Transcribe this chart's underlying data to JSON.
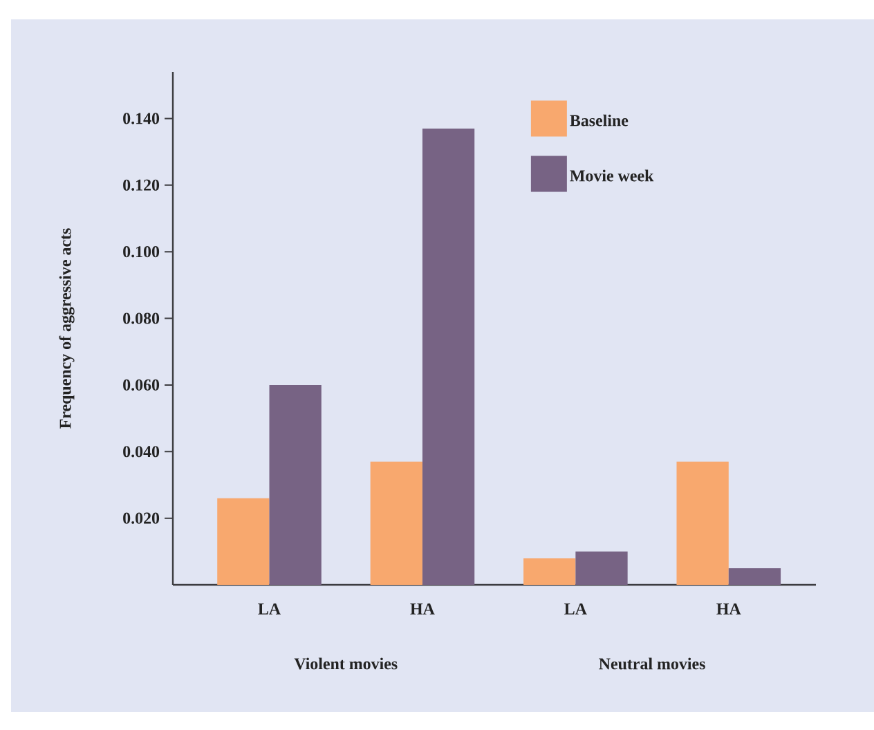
{
  "chart_data": {
    "type": "bar",
    "ylabel": "Frequency of aggressive acts",
    "categories": [
      "LA",
      "HA",
      "LA",
      "HA"
    ],
    "series": [
      {
        "name": "Baseline",
        "color": "#f8a86e",
        "values": [
          0.026,
          0.037,
          0.008,
          0.037
        ]
      },
      {
        "name": "Movie week",
        "color": "#776384",
        "values": [
          0.06,
          0.137,
          0.01,
          0.005
        ]
      }
    ],
    "ylim": [
      0,
      0.154
    ],
    "yticks": [
      {
        "value": 0.02,
        "label": "0.020"
      },
      {
        "value": 0.04,
        "label": "0.040"
      },
      {
        "value": 0.06,
        "label": "0.060"
      },
      {
        "value": 0.08,
        "label": "0.080"
      },
      {
        "value": 0.1,
        "label": "0.100"
      },
      {
        "value": 0.12,
        "label": "0.120"
      },
      {
        "value": 0.14,
        "label": "0.140"
      }
    ],
    "grid": false,
    "legend": "top right",
    "annotations": [
      "Violent movies",
      "Neutral movies"
    ]
  }
}
